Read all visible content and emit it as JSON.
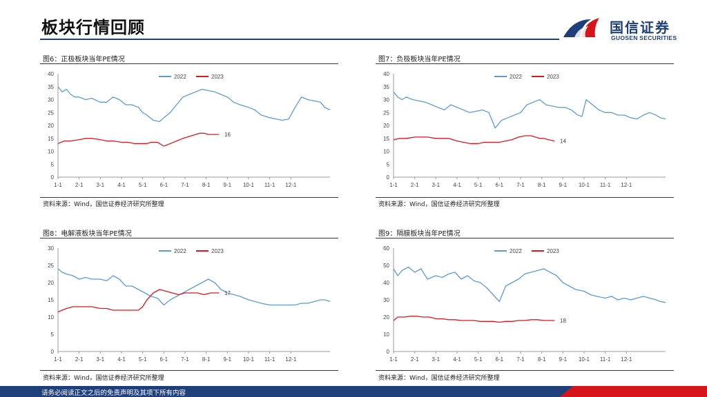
{
  "page": {
    "title": "板块行情回顾"
  },
  "logo": {
    "cn": "国信证券",
    "en": "GUOSEN SECURITIES"
  },
  "footer": {
    "text": "请务必阅读正文之后的免责声明及其项下所有内容"
  },
  "colors": {
    "y2022": "#5b9bd5",
    "y2023": "#e0151b",
    "brand": "#1f3f7a",
    "brand_red": "#d7141a"
  },
  "panels": [
    {
      "title": "图6：正极板块当年PE情况",
      "source": "资料来源：Wind，国信证券经济研究所整理"
    },
    {
      "title": "图7：负极板块当年PE情况",
      "source": "资料来源：Wind，国信证券经济研究所整理"
    },
    {
      "title": "图8：电解液板块当年PE情况",
      "source": "资料来源：Wind，国信证券经济研究所整理"
    },
    {
      "title": "图9：隔膜板块当年PE情况",
      "source": "资料来源：Wind，国信证券经济研究所整理"
    }
  ],
  "chart_data": [
    {
      "type": "line",
      "title": "图6：正极板块当年PE情况",
      "categories": [
        "1-1",
        "2-1",
        "3-1",
        "4-1",
        "5-1",
        "6-1",
        "7-1",
        "8-1",
        "9-1",
        "10-1",
        "11-1",
        "12-1"
      ],
      "ylim": [
        0,
        40
      ],
      "yticks": [
        0,
        5,
        10,
        15,
        20,
        25,
        30,
        35,
        40
      ],
      "legend": [
        "2022",
        "2023"
      ],
      "end_label": "16",
      "series": [
        {
          "name": "2022",
          "x": [
            0,
            0.2,
            0.4,
            0.6,
            0.8,
            1,
            1.3,
            1.6,
            2,
            2.3,
            2.6,
            2.9,
            3.2,
            3.5,
            3.8,
            4.0,
            4.2,
            4.5,
            4.8,
            5.0,
            5.3,
            5.6,
            5.9,
            6.2,
            6.5,
            6.8,
            7.1,
            7.4,
            7.7,
            8.0,
            8.3,
            8.6,
            9.0,
            9.3,
            9.6,
            10.0,
            10.3,
            10.6,
            10.9,
            11.2,
            11.5,
            11.8,
            12.1,
            12.4,
            12.6,
            12.85
          ],
          "values": [
            35,
            33,
            34,
            32,
            31,
            31,
            30,
            30.5,
            29,
            29,
            31,
            30,
            28,
            28,
            27,
            25,
            24,
            22,
            21.5,
            23,
            25,
            28,
            31,
            32,
            33,
            34,
            33.5,
            33,
            32,
            31,
            29,
            28,
            27,
            26,
            24,
            23,
            22.5,
            22,
            22.5,
            27,
            31,
            30,
            29.5,
            29,
            27,
            26
          ]
        },
        {
          "name": "2023",
          "x": [
            0,
            0.3,
            0.6,
            1,
            1.3,
            1.6,
            2,
            2.3,
            2.6,
            3,
            3.3,
            3.6,
            4,
            4.2,
            4.4,
            4.7,
            5,
            5.3,
            5.6,
            5.9,
            6.1,
            6.3,
            6.5,
            6.7,
            6.9,
            7.1,
            7.3,
            7.6
          ],
          "values": [
            13,
            14,
            14,
            14.5,
            15,
            15,
            14.5,
            14,
            14,
            13.5,
            13.5,
            13,
            13,
            13,
            13.5,
            13.5,
            12,
            13,
            14,
            15,
            15.5,
            16,
            16.5,
            17,
            17,
            16.5,
            16.5,
            16.5
          ]
        }
      ]
    },
    {
      "type": "line",
      "title": "图7：负极板块当年PE情况",
      "categories": [
        "1-1",
        "2-1",
        "3-1",
        "4-1",
        "5-1",
        "6-1",
        "7-1",
        "8-1",
        "9-1",
        "10-1",
        "11-1",
        "12-1"
      ],
      "ylim": [
        0,
        40
      ],
      "yticks": [
        0,
        5,
        10,
        15,
        20,
        25,
        30,
        35,
        40
      ],
      "legend": [
        "2022",
        "2023"
      ],
      "end_label": "14",
      "series": [
        {
          "name": "2022",
          "x": [
            0,
            0.2,
            0.4,
            0.6,
            0.9,
            1.2,
            1.5,
            1.8,
            2.1,
            2.4,
            2.7,
            3.0,
            3.3,
            3.6,
            3.9,
            4.2,
            4.5,
            4.8,
            5.1,
            5.4,
            5.7,
            6.0,
            6.3,
            6.6,
            6.9,
            7.2,
            7.5,
            7.8,
            8.1,
            8.4,
            8.7,
            8.9,
            9.1,
            9.4,
            9.7,
            10,
            10.3,
            10.6,
            10.9,
            11.2,
            11.5,
            11.8,
            12.1,
            12.4,
            12.6,
            12.85
          ],
          "values": [
            33,
            31,
            30,
            31,
            30,
            29.5,
            29,
            28,
            27,
            26,
            28,
            27,
            26,
            25,
            25.5,
            26,
            25,
            19,
            22,
            23,
            24,
            25,
            28,
            29,
            30,
            28,
            27.5,
            27,
            27,
            26,
            24,
            23.5,
            30,
            28,
            26,
            25,
            25,
            24,
            24,
            23,
            22.5,
            24,
            25,
            24,
            23,
            22.5
          ]
        },
        {
          "name": "2023",
          "x": [
            0,
            0.3,
            0.6,
            1,
            1.3,
            1.6,
            2,
            2.3,
            2.6,
            3,
            3.3,
            3.6,
            4,
            4.3,
            4.6,
            5,
            5.3,
            5.6,
            5.9,
            6.2,
            6.5,
            6.7,
            6.9,
            7.1,
            7.3,
            7.6
          ],
          "values": [
            14.5,
            15,
            15,
            15.5,
            15.5,
            15.5,
            15,
            15,
            15,
            14,
            13.5,
            13,
            13,
            13.5,
            13.5,
            13.5,
            14,
            14.5,
            15.5,
            16,
            16,
            15.5,
            15,
            15,
            14.5,
            14
          ]
        }
      ]
    },
    {
      "type": "line",
      "title": "图8：电解液板块当年PE情况",
      "categories": [
        "1-1",
        "2-1",
        "3-1",
        "4-1",
        "5-1",
        "6-1",
        "7-1",
        "8-1",
        "9-1",
        "10-1",
        "11-1",
        "12-1"
      ],
      "ylim": [
        0,
        30
      ],
      "yticks": [
        0,
        5,
        10,
        15,
        20,
        25,
        30
      ],
      "legend": [
        "2022",
        "2023"
      ],
      "end_label": "17",
      "series": [
        {
          "name": "2022",
          "x": [
            0,
            0.2,
            0.4,
            0.7,
            1,
            1.3,
            1.6,
            2,
            2.3,
            2.6,
            2.9,
            3.2,
            3.5,
            3.8,
            4.1,
            4.4,
            4.7,
            5,
            5.3,
            5.6,
            5.9,
            6.2,
            6.5,
            6.8,
            7.1,
            7.4,
            7.7,
            8.0,
            8.3,
            8.6,
            9,
            9.3,
            9.6,
            10,
            10.3,
            10.6,
            10.9,
            11.2,
            11.5,
            11.8,
            12.1,
            12.4,
            12.6,
            12.85
          ],
          "values": [
            24,
            23,
            22.5,
            22,
            21,
            21.5,
            21,
            21,
            20.5,
            22,
            21,
            19,
            19,
            18,
            17,
            16,
            15.5,
            13.5,
            15,
            16,
            17,
            18,
            19,
            20,
            21,
            20,
            18,
            17,
            16.5,
            16,
            15,
            14.5,
            14,
            13.5,
            13.5,
            13.5,
            13.5,
            13.5,
            14,
            14,
            14.5,
            15,
            15,
            14.5
          ]
        },
        {
          "name": "2023",
          "x": [
            0,
            0.2,
            0.4,
            0.7,
            1,
            1.3,
            1.6,
            2,
            2.3,
            2.6,
            2.9,
            3.2,
            3.5,
            3.8,
            4.0,
            4.2,
            4.5,
            4.8,
            5.1,
            5.4,
            5.7,
            6.0,
            6.3,
            6.6,
            6.9,
            7.2,
            7.6
          ],
          "values": [
            11.5,
            12,
            12.5,
            13,
            13,
            13,
            13,
            12.5,
            12.5,
            12,
            12,
            12,
            12,
            12,
            13,
            15,
            17,
            18,
            17.5,
            17,
            16.5,
            17,
            17,
            17,
            16.5,
            17,
            17
          ]
        }
      ]
    },
    {
      "type": "line",
      "title": "图9：隔膜板块当年PE情况",
      "categories": [
        "1-1",
        "2-1",
        "3-1",
        "4-1",
        "5-1",
        "6-1",
        "7-1",
        "8-1",
        "9-1",
        "10-1",
        "11-1",
        "12-1"
      ],
      "ylim": [
        0,
        60
      ],
      "yticks": [
        0,
        10,
        20,
        30,
        40,
        50,
        60
      ],
      "legend": [
        "2022",
        "2023"
      ],
      "end_label": "18",
      "series": [
        {
          "name": "2022",
          "x": [
            0,
            0.2,
            0.4,
            0.7,
            1,
            1.3,
            1.6,
            2,
            2.3,
            2.6,
            2.9,
            3.2,
            3.5,
            3.8,
            4.1,
            4.4,
            4.7,
            5,
            5.3,
            5.6,
            5.9,
            6.2,
            6.5,
            6.8,
            7.1,
            7.4,
            7.7,
            8.0,
            8.3,
            8.6,
            9,
            9.3,
            9.6,
            10,
            10.3,
            10.6,
            10.9,
            11.2,
            11.5,
            11.8,
            12.1,
            12.4,
            12.6,
            12.85
          ],
          "values": [
            48,
            44,
            47,
            49,
            46,
            48,
            42,
            44,
            43,
            45,
            46,
            42,
            44,
            41,
            40,
            37,
            33,
            29,
            38,
            40,
            42,
            45,
            46,
            47,
            48,
            46,
            44,
            40,
            38,
            36,
            35,
            33,
            32,
            31,
            32,
            30,
            31,
            30,
            31,
            32,
            31,
            30,
            29,
            28.5
          ]
        },
        {
          "name": "2023",
          "x": [
            0,
            0.2,
            0.5,
            0.8,
            1.1,
            1.4,
            1.7,
            2,
            2.3,
            2.6,
            2.9,
            3.2,
            3.5,
            3.8,
            4.1,
            4.4,
            4.7,
            5,
            5.3,
            5.6,
            5.9,
            6.2,
            6.5,
            6.8,
            7.1,
            7.6
          ],
          "values": [
            18,
            20,
            20,
            20.5,
            20.5,
            20,
            20,
            19,
            19,
            18.5,
            18.5,
            18,
            18,
            18,
            17.5,
            17.5,
            17.5,
            17,
            17.5,
            17.5,
            18,
            18,
            18.5,
            18.5,
            18,
            18
          ]
        }
      ]
    }
  ]
}
